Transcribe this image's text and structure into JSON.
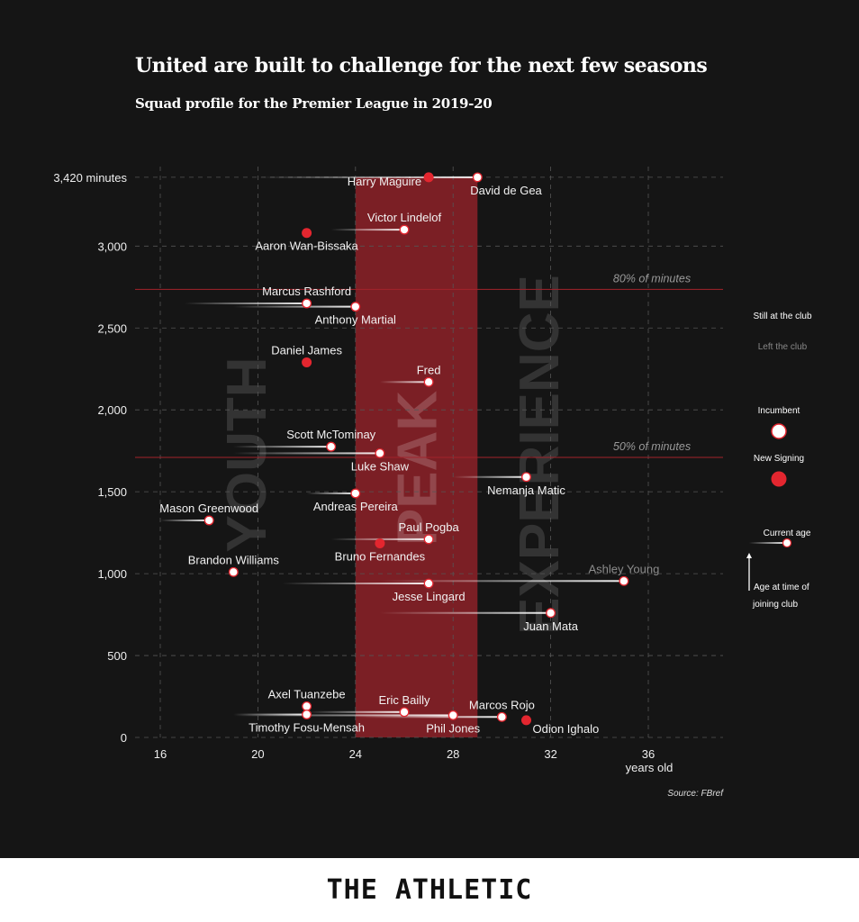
{
  "title": "United are built to challenge for the next few seasons",
  "subtitle": "Squad profile for the Premier League in 2019-20",
  "source": "Source: FBref",
  "brand": "THE ATHLETIC",
  "colors": {
    "background": "#151515",
    "peak_band": "#7b1f25",
    "new_signing": "#e3262f",
    "incumbent": "#ffffff",
    "ref_line": "#a3232b",
    "left_club": "#8c8c8c"
  },
  "zones": [
    {
      "label": "YOUTH",
      "age": 19.5
    },
    {
      "label": "PEAK",
      "age": 26.5
    },
    {
      "label": "EXPERIENCE",
      "age": 31.5
    }
  ],
  "legend": {
    "still": "Still at the club",
    "left": "Left the club",
    "incumbent": "Incumbent",
    "new_signing": "New Signing",
    "current_age": "Current age",
    "joining_1": "Age at time of",
    "joining_2": "joining club"
  },
  "chart_data": {
    "type": "scatter",
    "title": "United are built to challenge for the next few seasons",
    "xlabel": "years old",
    "ylabel": "minutes",
    "xlim": [
      15,
      39
    ],
    "ylim": [
      0,
      3420
    ],
    "x_ticks": [
      16,
      20,
      24,
      28,
      32,
      36
    ],
    "y_ticks": [
      {
        "v": 0,
        "label": "0"
      },
      {
        "v": 500,
        "label": "500"
      },
      {
        "v": 1000,
        "label": "1,000"
      },
      {
        "v": 1500,
        "label": "1,500"
      },
      {
        "v": 2000,
        "label": "2,000"
      },
      {
        "v": 2500,
        "label": "2,500"
      },
      {
        "v": 3000,
        "label": "3,000"
      },
      {
        "v": 3420,
        "label": "3,420 minutes"
      }
    ],
    "peak_band": [
      24,
      29
    ],
    "reference_lines": [
      {
        "label": "80% of minutes",
        "minutes": 2736
      },
      {
        "label": "50% of minutes",
        "minutes": 1710
      }
    ],
    "grid": true,
    "players": [
      {
        "name": "David de Gea",
        "age": 29,
        "joined": 20,
        "minutes": 3420,
        "type": "incumbent",
        "left": false,
        "pos": "below-right"
      },
      {
        "name": "Harry Maguire",
        "age": 27,
        "joined": null,
        "minutes": 3420,
        "type": "new",
        "left": false,
        "pos": "left"
      },
      {
        "name": "Victor Lindelof",
        "age": 26,
        "joined": 23,
        "minutes": 3100,
        "type": "incumbent",
        "left": false,
        "pos": "above"
      },
      {
        "name": "Aaron Wan-Bissaka",
        "age": 22,
        "joined": null,
        "minutes": 3080,
        "type": "new",
        "left": false,
        "pos": "below"
      },
      {
        "name": "Marcus Rashford",
        "age": 22,
        "joined": 17,
        "minutes": 2650,
        "type": "incumbent",
        "left": false,
        "pos": "above"
      },
      {
        "name": "Anthony Martial",
        "age": 24,
        "joined": 19,
        "minutes": 2630,
        "type": "incumbent",
        "left": false,
        "pos": "below"
      },
      {
        "name": "Daniel James",
        "age": 22,
        "joined": null,
        "minutes": 2290,
        "type": "new",
        "left": false,
        "pos": "above"
      },
      {
        "name": "Fred",
        "age": 27,
        "joined": 25,
        "minutes": 2170,
        "type": "incumbent",
        "left": false,
        "pos": "above"
      },
      {
        "name": "Scott McTominay",
        "age": 23,
        "joined": 19,
        "minutes": 1775,
        "type": "incumbent",
        "left": false,
        "pos": "above"
      },
      {
        "name": "Luke Shaw",
        "age": 25,
        "joined": 19,
        "minutes": 1735,
        "type": "incumbent",
        "left": false,
        "pos": "below"
      },
      {
        "name": "Nemanja Matic",
        "age": 31,
        "joined": 28,
        "minutes": 1590,
        "type": "incumbent",
        "left": false,
        "pos": "below"
      },
      {
        "name": "Andreas Pereira",
        "age": 24,
        "joined": 22,
        "minutes": 1490,
        "type": "incumbent",
        "left": false,
        "pos": "below"
      },
      {
        "name": "Mason Greenwood",
        "age": 18,
        "joined": 16,
        "minutes": 1325,
        "type": "incumbent",
        "left": false,
        "pos": "above"
      },
      {
        "name": "Paul Pogba",
        "age": 27,
        "joined": 23,
        "minutes": 1210,
        "type": "incumbent",
        "left": false,
        "pos": "above"
      },
      {
        "name": "Bruno Fernandes",
        "age": 25,
        "joined": null,
        "minutes": 1185,
        "type": "new",
        "left": false,
        "pos": "below"
      },
      {
        "name": "Brandon Williams",
        "age": 19,
        "joined": null,
        "minutes": 1010,
        "type": "incumbent",
        "left": false,
        "pos": "above"
      },
      {
        "name": "Ashley Young",
        "age": 35,
        "joined": 25,
        "minutes": 955,
        "type": "incumbent",
        "left": true,
        "pos": "above"
      },
      {
        "name": "Jesse Lingard",
        "age": 27,
        "joined": 21,
        "minutes": 940,
        "type": "incumbent",
        "left": false,
        "pos": "below"
      },
      {
        "name": "Juan Mata",
        "age": 32,
        "joined": 25,
        "minutes": 760,
        "type": "incumbent",
        "left": false,
        "pos": "below"
      },
      {
        "name": "Axel Tuanzebe",
        "age": 22,
        "joined": null,
        "minutes": 190,
        "type": "incumbent",
        "left": false,
        "pos": "above"
      },
      {
        "name": "Timothy Fosu-Mensah",
        "age": 22,
        "joined": 19,
        "minutes": 140,
        "type": "incumbent",
        "left": false,
        "pos": "below"
      },
      {
        "name": "Eric Bailly",
        "age": 26,
        "joined": 22,
        "minutes": 155,
        "type": "incumbent",
        "left": false,
        "pos": "above"
      },
      {
        "name": "Phil Jones",
        "age": 28,
        "joined": 19,
        "minutes": 135,
        "type": "incumbent",
        "left": false,
        "pos": "below"
      },
      {
        "name": "Marcos Rojo",
        "age": 30,
        "joined": 24,
        "minutes": 125,
        "type": "incumbent",
        "left": false,
        "pos": "above"
      },
      {
        "name": "Odion Ighalo",
        "age": 31,
        "joined": null,
        "minutes": 105,
        "type": "new",
        "left": false,
        "pos": "below-right"
      }
    ]
  }
}
